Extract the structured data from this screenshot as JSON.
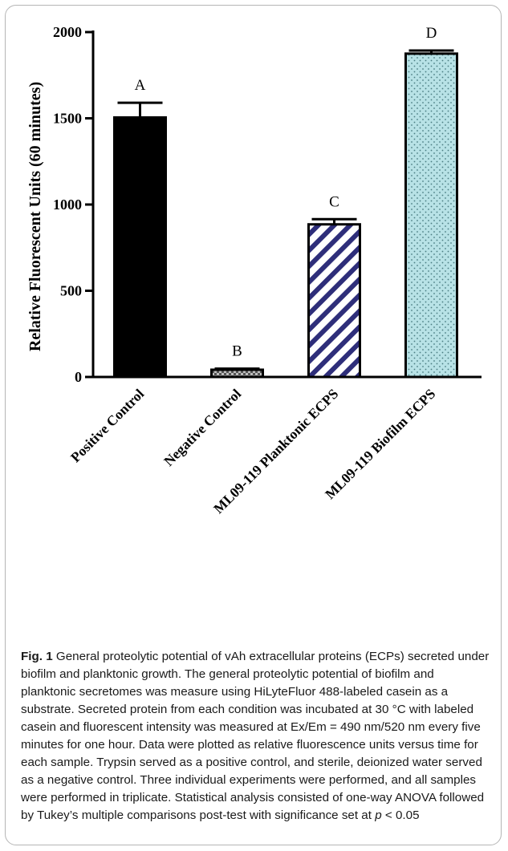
{
  "chart_data": {
    "type": "bar",
    "categories": [
      "Positive Control",
      "Negative Control",
      "ML09-119 Planktonic ECPS",
      "ML09-119 Biofilm ECPS"
    ],
    "values": [
      1505,
      42,
      885,
      1875
    ],
    "errors": [
      85,
      6,
      30,
      18
    ],
    "significance_letters": [
      "A",
      "B",
      "C",
      "D"
    ],
    "ylabel": "Relative Fluorescent Units (60 minutes)",
    "ylim": [
      0,
      2000
    ],
    "yticks": [
      "0",
      "500",
      "1000",
      "1500",
      "2000"
    ],
    "bar_fills": [
      "solid",
      "checker",
      "diagonal-stripes",
      "dots"
    ],
    "colors": {
      "positive": "#000000",
      "negative": "#777777",
      "planktonic": "#2e2e7a",
      "biofilm": "#b8e2e6"
    }
  },
  "caption": {
    "label": "Fig. 1",
    "text_before_p": " General proteolytic potential of vAh extracellular proteins (ECPs) secreted under biofilm and planktonic growth. The general proteolytic potential of biofilm and planktonic secretomes was measure using HiLyteFluor 488-labeled casein as a substrate. Secreted protein from each condition was incubated at 30 °C with labeled casein and fluorescent intensity was measured at Ex/Em = 490 nm/520 nm every five minutes for one hour. Data were plotted as relative fluorescence units versus time for each sample. Trypsin served as a positive control, and sterile, deionized water served as a negative control. Three individual experiments were performed, and all samples were performed in triplicate. Statistical analysis consisted of one-way ANOVA followed by Tukey’s multiple comparisons post-test with significance set at ",
    "p_symbol": "p",
    "text_after_p": " < 0.05"
  }
}
